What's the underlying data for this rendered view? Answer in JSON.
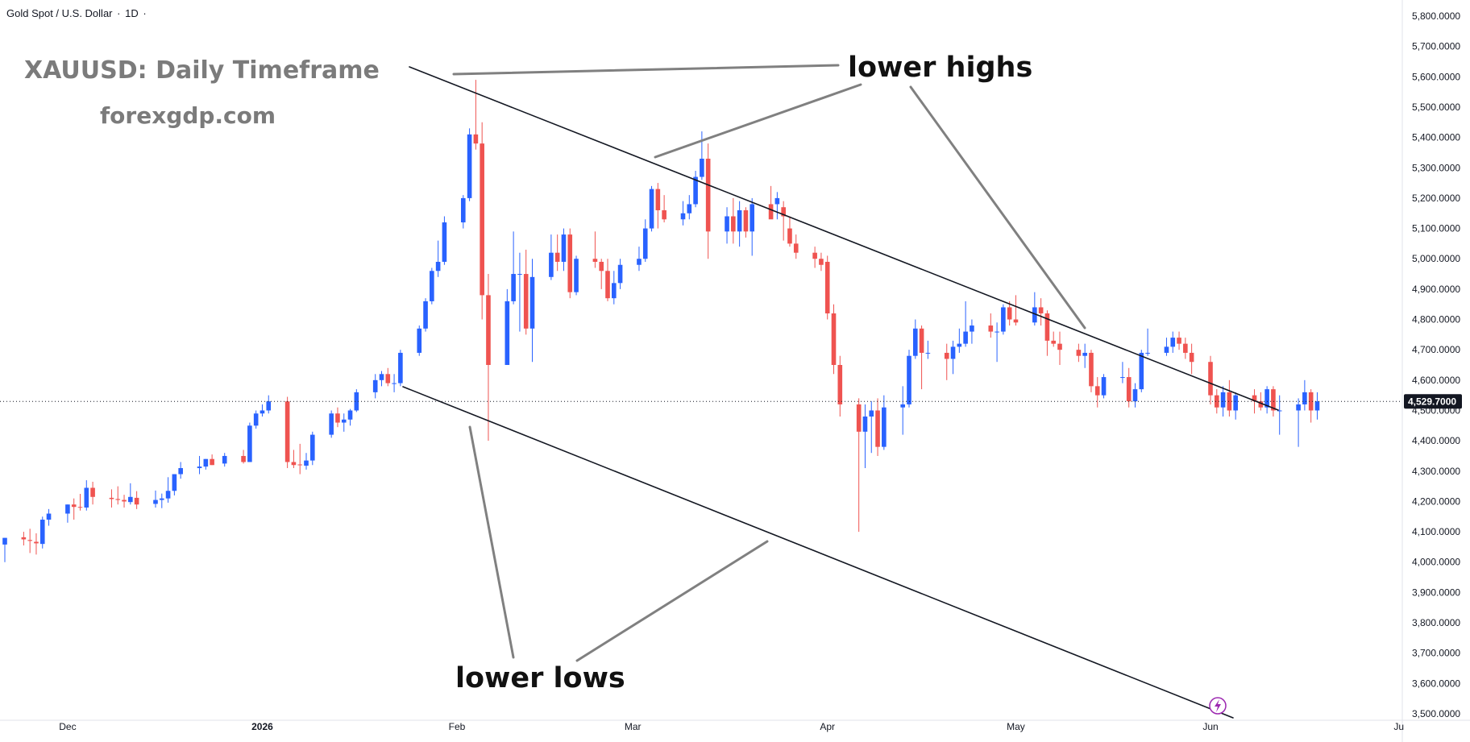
{
  "header": {
    "symbol": "Gold Spot / U.S. Dollar",
    "interval": "1D"
  },
  "watermark": {
    "title": "XAUUSD: Daily Timeframe",
    "site": "forexgdp.com"
  },
  "annotations": {
    "lower_highs": "lower highs",
    "lower_lows": "lower lows"
  },
  "colors": {
    "up": "#2962ff",
    "down": "#ef5350",
    "trendline": "#131722",
    "pointer": "#808080",
    "axis_text": "#131722",
    "price_tag_bg": "#131722"
  },
  "chart_data": {
    "type": "candlestick",
    "y_axis": {
      "ylim": [
        3500,
        5800
      ],
      "ticks": [
        "5,800.0000",
        "5,700.0000",
        "5,600.0000",
        "5,500.0000",
        "5,400.0000",
        "5,300.0000",
        "5,200.0000",
        "5,100.0000",
        "5,000.0000",
        "4,900.0000",
        "4,800.0000",
        "4,700.0000",
        "4,600.0000",
        "4,500.0000",
        "4,400.0000",
        "4,300.0000",
        "4,200.0000",
        "4,100.0000",
        "4,000.0000",
        "3,900.0000",
        "3,800.0000",
        "3,700.0000",
        "3,600.0000",
        "3,500.0000"
      ],
      "side": "right"
    },
    "x_axis": {
      "labels": [
        "Dec",
        "2026",
        "Feb",
        "Mar",
        "Apr",
        "May",
        "Jun",
        "Ju"
      ],
      "label_dates": [
        "2025-12-01",
        "2026-01-01",
        "2026-02-01",
        "2026-03-01",
        "2026-04-01",
        "2026-05-01",
        "2026-06-01",
        "2026-07-01"
      ],
      "bold": [
        "2026"
      ]
    },
    "last_price": {
      "value": 4529.7,
      "label": "4,529.7000"
    },
    "candles": [
      {
        "date": "2025-11-21",
        "o": 4058,
        "h": 4080,
        "l": 4000,
        "c": 4080
      },
      {
        "date": "2025-11-24",
        "o": 4082,
        "h": 4100,
        "l": 4055,
        "c": 4075
      },
      {
        "date": "2025-11-25",
        "o": 4073,
        "h": 4110,
        "l": 4030,
        "c": 4070
      },
      {
        "date": "2025-11-26",
        "o": 4067,
        "h": 4095,
        "l": 4025,
        "c": 4062
      },
      {
        "date": "2025-11-27",
        "o": 4060,
        "h": 4150,
        "l": 4045,
        "c": 4140
      },
      {
        "date": "2025-11-28",
        "o": 4140,
        "h": 4175,
        "l": 4120,
        "c": 4160
      },
      {
        "date": "2025-12-01",
        "o": 4160,
        "h": 4190,
        "l": 4130,
        "c": 4190
      },
      {
        "date": "2025-12-02",
        "o": 4190,
        "h": 4210,
        "l": 4140,
        "c": 4182
      },
      {
        "date": "2025-12-03",
        "o": 4182,
        "h": 4225,
        "l": 4170,
        "c": 4180
      },
      {
        "date": "2025-12-04",
        "o": 4180,
        "h": 4270,
        "l": 4170,
        "c": 4245
      },
      {
        "date": "2025-12-05",
        "o": 4245,
        "h": 4265,
        "l": 4190,
        "c": 4215
      },
      {
        "date": "2025-12-08",
        "o": 4212,
        "h": 4240,
        "l": 4180,
        "c": 4208
      },
      {
        "date": "2025-12-09",
        "o": 4208,
        "h": 4250,
        "l": 4190,
        "c": 4205
      },
      {
        "date": "2025-12-10",
        "o": 4205,
        "h": 4222,
        "l": 4180,
        "c": 4200
      },
      {
        "date": "2025-12-11",
        "o": 4198,
        "h": 4260,
        "l": 4190,
        "c": 4215
      },
      {
        "date": "2025-12-12",
        "o": 4212,
        "h": 4234,
        "l": 4175,
        "c": 4190
      },
      {
        "date": "2025-12-15",
        "o": 4192,
        "h": 4236,
        "l": 4180,
        "c": 4205
      },
      {
        "date": "2025-12-16",
        "o": 4205,
        "h": 4226,
        "l": 4178,
        "c": 4210
      },
      {
        "date": "2025-12-17",
        "o": 4210,
        "h": 4280,
        "l": 4196,
        "c": 4235
      },
      {
        "date": "2025-12-18",
        "o": 4235,
        "h": 4290,
        "l": 4220,
        "c": 4290
      },
      {
        "date": "2025-12-19",
        "o": 4290,
        "h": 4330,
        "l": 4275,
        "c": 4310
      },
      {
        "date": "2025-12-22",
        "o": 4310,
        "h": 4350,
        "l": 4290,
        "c": 4315
      },
      {
        "date": "2025-12-23",
        "o": 4315,
        "h": 4340,
        "l": 4305,
        "c": 4340
      },
      {
        "date": "2025-12-24",
        "o": 4340,
        "h": 4355,
        "l": 4320,
        "c": 4320
      },
      {
        "date": "2025-12-26",
        "o": 4325,
        "h": 4360,
        "l": 4315,
        "c": 4350
      },
      {
        "date": "2025-12-29",
        "o": 4350,
        "h": 4370,
        "l": 4325,
        "c": 4330
      },
      {
        "date": "2025-12-30",
        "o": 4330,
        "h": 4460,
        "l": 4330,
        "c": 4450
      },
      {
        "date": "2025-12-31",
        "o": 4450,
        "h": 4500,
        "l": 4440,
        "c": 4490
      },
      {
        "date": "2026-01-01",
        "o": 4490,
        "h": 4520,
        "l": 4480,
        "c": 4500
      },
      {
        "date": "2026-01-02",
        "o": 4500,
        "h": 4550,
        "l": 4490,
        "c": 4530
      },
      {
        "date": "2026-01-05",
        "o": 4530,
        "h": 4545,
        "l": 4310,
        "c": 4330
      },
      {
        "date": "2026-01-06",
        "o": 4330,
        "h": 4370,
        "l": 4310,
        "c": 4320
      },
      {
        "date": "2026-01-07",
        "o": 4322,
        "h": 4390,
        "l": 4290,
        "c": 4320
      },
      {
        "date": "2026-01-08",
        "o": 4318,
        "h": 4360,
        "l": 4305,
        "c": 4335
      },
      {
        "date": "2026-01-09",
        "o": 4335,
        "h": 4430,
        "l": 4320,
        "c": 4420
      },
      {
        "date": "2026-01-12",
        "o": 4420,
        "h": 4500,
        "l": 4410,
        "c": 4490
      },
      {
        "date": "2026-01-13",
        "o": 4490,
        "h": 4510,
        "l": 4445,
        "c": 4460
      },
      {
        "date": "2026-01-14",
        "o": 4460,
        "h": 4490,
        "l": 4430,
        "c": 4470
      },
      {
        "date": "2026-01-15",
        "o": 4470,
        "h": 4505,
        "l": 4450,
        "c": 4500
      },
      {
        "date": "2026-01-16",
        "o": 4500,
        "h": 4570,
        "l": 4495,
        "c": 4560
      },
      {
        "date": "2026-01-19",
        "o": 4560,
        "h": 4620,
        "l": 4540,
        "c": 4600
      },
      {
        "date": "2026-01-20",
        "o": 4600,
        "h": 4630,
        "l": 4580,
        "c": 4620
      },
      {
        "date": "2026-01-21",
        "o": 4620,
        "h": 4640,
        "l": 4580,
        "c": 4590
      },
      {
        "date": "2026-01-22",
        "o": 4590,
        "h": 4620,
        "l": 4560,
        "c": 4590
      },
      {
        "date": "2026-01-23",
        "o": 4590,
        "h": 4700,
        "l": 4580,
        "c": 4690
      },
      {
        "date": "2026-01-26",
        "o": 4690,
        "h": 4780,
        "l": 4680,
        "c": 4770
      },
      {
        "date": "2026-01-27",
        "o": 4770,
        "h": 4870,
        "l": 4760,
        "c": 4860
      },
      {
        "date": "2026-01-28",
        "o": 4860,
        "h": 4970,
        "l": 4850,
        "c": 4960
      },
      {
        "date": "2026-01-29",
        "o": 4960,
        "h": 5060,
        "l": 4940,
        "c": 4990
      },
      {
        "date": "2026-01-30",
        "o": 4990,
        "h": 5140,
        "l": 4980,
        "c": 5120
      },
      {
        "date": "2026-02-02",
        "o": 5120,
        "h": 5210,
        "l": 5100,
        "c": 5200
      },
      {
        "date": "2026-02-03",
        "o": 5200,
        "h": 5430,
        "l": 5190,
        "c": 5410
      },
      {
        "date": "2026-02-04",
        "o": 5410,
        "h": 5590,
        "l": 5360,
        "c": 5380
      },
      {
        "date": "2026-02-05",
        "o": 5380,
        "h": 5450,
        "l": 4800,
        "c": 4880
      },
      {
        "date": "2026-02-06",
        "o": 4880,
        "h": 4950,
        "l": 4400,
        "c": 4650
      },
      {
        "date": "2026-02-09",
        "o": 4650,
        "h": 4900,
        "l": 4650,
        "c": 4860
      },
      {
        "date": "2026-02-10",
        "o": 4860,
        "h": 5090,
        "l": 4850,
        "c": 4950
      },
      {
        "date": "2026-02-11",
        "o": 4950,
        "h": 5020,
        "l": 4760,
        "c": 4950
      },
      {
        "date": "2026-02-12",
        "o": 4950,
        "h": 5030,
        "l": 4750,
        "c": 4770
      },
      {
        "date": "2026-02-13",
        "o": 4770,
        "h": 5000,
        "l": 4660,
        "c": 4940
      },
      {
        "date": "2026-02-16",
        "o": 4940,
        "h": 5080,
        "l": 4930,
        "c": 5020
      },
      {
        "date": "2026-02-17",
        "o": 5020,
        "h": 5080,
        "l": 4960,
        "c": 4990
      },
      {
        "date": "2026-02-18",
        "o": 4990,
        "h": 5100,
        "l": 4960,
        "c": 5080
      },
      {
        "date": "2026-02-19",
        "o": 5080,
        "h": 5100,
        "l": 4870,
        "c": 4890
      },
      {
        "date": "2026-02-20",
        "o": 4890,
        "h": 5010,
        "l": 4880,
        "c": 5000
      },
      {
        "date": "2026-02-23",
        "o": 5000,
        "h": 5090,
        "l": 4970,
        "c": 4990
      },
      {
        "date": "2026-02-24",
        "o": 4990,
        "h": 5000,
        "l": 4900,
        "c": 4960
      },
      {
        "date": "2026-02-25",
        "o": 4960,
        "h": 5000,
        "l": 4860,
        "c": 4870
      },
      {
        "date": "2026-02-26",
        "o": 4870,
        "h": 4960,
        "l": 4850,
        "c": 4920
      },
      {
        "date": "2026-02-27",
        "o": 4920,
        "h": 5000,
        "l": 4900,
        "c": 4980
      },
      {
        "date": "2026-03-02",
        "o": 4980,
        "h": 5040,
        "l": 4960,
        "c": 5000
      },
      {
        "date": "2026-03-03",
        "o": 5000,
        "h": 5130,
        "l": 4990,
        "c": 5100
      },
      {
        "date": "2026-03-04",
        "o": 5100,
        "h": 5240,
        "l": 5090,
        "c": 5230
      },
      {
        "date": "2026-03-05",
        "o": 5230,
        "h": 5250,
        "l": 5100,
        "c": 5160
      },
      {
        "date": "2026-03-06",
        "o": 5160,
        "h": 5210,
        "l": 5120,
        "c": 5130
      },
      {
        "date": "2026-03-09",
        "o": 5130,
        "h": 5190,
        "l": 5110,
        "c": 5150
      },
      {
        "date": "2026-03-10",
        "o": 5150,
        "h": 5210,
        "l": 5130,
        "c": 5180
      },
      {
        "date": "2026-03-11",
        "o": 5180,
        "h": 5290,
        "l": 5170,
        "c": 5270
      },
      {
        "date": "2026-03-12",
        "o": 5270,
        "h": 5420,
        "l": 5260,
        "c": 5330
      },
      {
        "date": "2026-03-13",
        "o": 5330,
        "h": 5380,
        "l": 5000,
        "c": 5090
      },
      {
        "date": "2026-03-16",
        "o": 5090,
        "h": 5170,
        "l": 5050,
        "c": 5140
      },
      {
        "date": "2026-03-17",
        "o": 5140,
        "h": 5200,
        "l": 5050,
        "c": 5090
      },
      {
        "date": "2026-03-18",
        "o": 5090,
        "h": 5190,
        "l": 5040,
        "c": 5160
      },
      {
        "date": "2026-03-19",
        "o": 5160,
        "h": 5170,
        "l": 5070,
        "c": 5090
      },
      {
        "date": "2026-03-20",
        "o": 5090,
        "h": 5200,
        "l": 5010,
        "c": 5180
      },
      {
        "date": "2026-03-23",
        "o": 5180,
        "h": 5240,
        "l": 5150,
        "c": 5130
      },
      {
        "date": "2026-03-24",
        "o": 5180,
        "h": 5220,
        "l": 5130,
        "c": 5200
      },
      {
        "date": "2026-03-25",
        "o": 5170,
        "h": 5190,
        "l": 5060,
        "c": 5140
      },
      {
        "date": "2026-03-26",
        "o": 5100,
        "h": 5140,
        "l": 5040,
        "c": 5050
      },
      {
        "date": "2026-03-27",
        "o": 5050,
        "h": 5080,
        "l": 5000,
        "c": 5020
      },
      {
        "date": "2026-03-30",
        "o": 5020,
        "h": 5040,
        "l": 4970,
        "c": 5000
      },
      {
        "date": "2026-03-31",
        "o": 5000,
        "h": 5020,
        "l": 4960,
        "c": 4980
      },
      {
        "date": "2026-04-01",
        "o": 4990,
        "h": 5010,
        "l": 4800,
        "c": 4820
      },
      {
        "date": "2026-04-02",
        "o": 4820,
        "h": 4850,
        "l": 4620,
        "c": 4650
      },
      {
        "date": "2026-04-03",
        "o": 4650,
        "h": 4680,
        "l": 4480,
        "c": 4520
      },
      {
        "date": "2026-04-06",
        "o": 4520,
        "h": 4540,
        "l": 4100,
        "c": 4430
      },
      {
        "date": "2026-04-07",
        "o": 4430,
        "h": 4520,
        "l": 4310,
        "c": 4480
      },
      {
        "date": "2026-04-08",
        "o": 4480,
        "h": 4530,
        "l": 4360,
        "c": 4500
      },
      {
        "date": "2026-04-09",
        "o": 4500,
        "h": 4540,
        "l": 4350,
        "c": 4380
      },
      {
        "date": "2026-04-10",
        "o": 4380,
        "h": 4550,
        "l": 4370,
        "c": 4510
      },
      {
        "date": "2026-04-13",
        "o": 4510,
        "h": 4580,
        "l": 4420,
        "c": 4520
      },
      {
        "date": "2026-04-14",
        "o": 4520,
        "h": 4700,
        "l": 4510,
        "c": 4680
      },
      {
        "date": "2026-04-15",
        "o": 4680,
        "h": 4800,
        "l": 4670,
        "c": 4770
      },
      {
        "date": "2026-04-16",
        "o": 4770,
        "h": 4780,
        "l": 4570,
        "c": 4690
      },
      {
        "date": "2026-04-17",
        "o": 4690,
        "h": 4730,
        "l": 4670,
        "c": 4690
      },
      {
        "date": "2026-04-20",
        "o": 4690,
        "h": 4720,
        "l": 4600,
        "c": 4670
      },
      {
        "date": "2026-04-21",
        "o": 4670,
        "h": 4730,
        "l": 4620,
        "c": 4710
      },
      {
        "date": "2026-04-22",
        "o": 4710,
        "h": 4770,
        "l": 4690,
        "c": 4720
      },
      {
        "date": "2026-04-23",
        "o": 4720,
        "h": 4860,
        "l": 4710,
        "c": 4760
      },
      {
        "date": "2026-04-24",
        "o": 4760,
        "h": 4800,
        "l": 4720,
        "c": 4780
      },
      {
        "date": "2026-04-27",
        "o": 4780,
        "h": 4820,
        "l": 4740,
        "c": 4760
      },
      {
        "date": "2026-04-28",
        "o": 4760,
        "h": 4790,
        "l": 4660,
        "c": 4760
      },
      {
        "date": "2026-04-29",
        "o": 4760,
        "h": 4850,
        "l": 4750,
        "c": 4840
      },
      {
        "date": "2026-04-30",
        "o": 4840,
        "h": 4860,
        "l": 4780,
        "c": 4800
      },
      {
        "date": "2026-05-01",
        "o": 4800,
        "h": 4880,
        "l": 4780,
        "c": 4790
      },
      {
        "date": "2026-05-04",
        "o": 4790,
        "h": 4890,
        "l": 4780,
        "c": 4840
      },
      {
        "date": "2026-05-05",
        "o": 4840,
        "h": 4870,
        "l": 4780,
        "c": 4820
      },
      {
        "date": "2026-05-06",
        "o": 4820,
        "h": 4830,
        "l": 4680,
        "c": 4730
      },
      {
        "date": "2026-05-07",
        "o": 4730,
        "h": 4760,
        "l": 4710,
        "c": 4720
      },
      {
        "date": "2026-05-08",
        "o": 4720,
        "h": 4760,
        "l": 4650,
        "c": 4700
      },
      {
        "date": "2026-05-11",
        "o": 4700,
        "h": 4720,
        "l": 4660,
        "c": 4680
      },
      {
        "date": "2026-05-12",
        "o": 4680,
        "h": 4720,
        "l": 4640,
        "c": 4690
      },
      {
        "date": "2026-05-13",
        "o": 4690,
        "h": 4700,
        "l": 4560,
        "c": 4580
      },
      {
        "date": "2026-05-14",
        "o": 4580,
        "h": 4610,
        "l": 4510,
        "c": 4550
      },
      {
        "date": "2026-05-15",
        "o": 4550,
        "h": 4620,
        "l": 4540,
        "c": 4610
      },
      {
        "date": "2026-05-18",
        "o": 4610,
        "h": 4660,
        "l": 4590,
        "c": 4610
      },
      {
        "date": "2026-05-19",
        "o": 4610,
        "h": 4640,
        "l": 4510,
        "c": 4530
      },
      {
        "date": "2026-05-20",
        "o": 4530,
        "h": 4590,
        "l": 4510,
        "c": 4570
      },
      {
        "date": "2026-05-21",
        "o": 4570,
        "h": 4700,
        "l": 4560,
        "c": 4690
      },
      {
        "date": "2026-05-22",
        "o": 4690,
        "h": 4770,
        "l": 4680,
        "c": 4690
      },
      {
        "date": "2026-05-25",
        "o": 4690,
        "h": 4740,
        "l": 4680,
        "c": 4710
      },
      {
        "date": "2026-05-26",
        "o": 4710,
        "h": 4760,
        "l": 4690,
        "c": 4740
      },
      {
        "date": "2026-05-27",
        "o": 4740,
        "h": 4760,
        "l": 4700,
        "c": 4720
      },
      {
        "date": "2026-05-28",
        "o": 4720,
        "h": 4740,
        "l": 4670,
        "c": 4690
      },
      {
        "date": "2026-05-29",
        "o": 4690,
        "h": 4720,
        "l": 4620,
        "c": 4660
      },
      {
        "date": "2026-06-01",
        "o": 4660,
        "h": 4680,
        "l": 4520,
        "c": 4550
      },
      {
        "date": "2026-06-02",
        "o": 4550,
        "h": 4570,
        "l": 4490,
        "c": 4510
      },
      {
        "date": "2026-06-03",
        "o": 4510,
        "h": 4580,
        "l": 4480,
        "c": 4560
      },
      {
        "date": "2026-06-04",
        "o": 4560,
        "h": 4600,
        "l": 4480,
        "c": 4500
      },
      {
        "date": "2026-06-05",
        "o": 4500,
        "h": 4560,
        "l": 4470,
        "c": 4550
      },
      {
        "date": "2026-06-08",
        "o": 4550,
        "h": 4570,
        "l": 4490,
        "c": 4530
      },
      {
        "date": "2026-06-09",
        "o": 4530,
        "h": 4560,
        "l": 4500,
        "c": 4510
      },
      {
        "date": "2026-06-10",
        "o": 4510,
        "h": 4580,
        "l": 4490,
        "c": 4570
      },
      {
        "date": "2026-06-11",
        "o": 4570,
        "h": 4580,
        "l": 4480,
        "c": 4500
      },
      {
        "date": "2026-06-12",
        "o": 4500,
        "h": 4550,
        "l": 4420,
        "c": 4500
      },
      {
        "date": "2026-06-15",
        "o": 4500,
        "h": 4540,
        "l": 4380,
        "c": 4520
      },
      {
        "date": "2026-06-16",
        "o": 4520,
        "h": 4600,
        "l": 4500,
        "c": 4560
      },
      {
        "date": "2026-06-17",
        "o": 4560,
        "h": 4570,
        "l": 4460,
        "c": 4500
      },
      {
        "date": "2026-06-18",
        "o": 4500,
        "h": 4560,
        "l": 4470,
        "c": 4530
      }
    ]
  }
}
